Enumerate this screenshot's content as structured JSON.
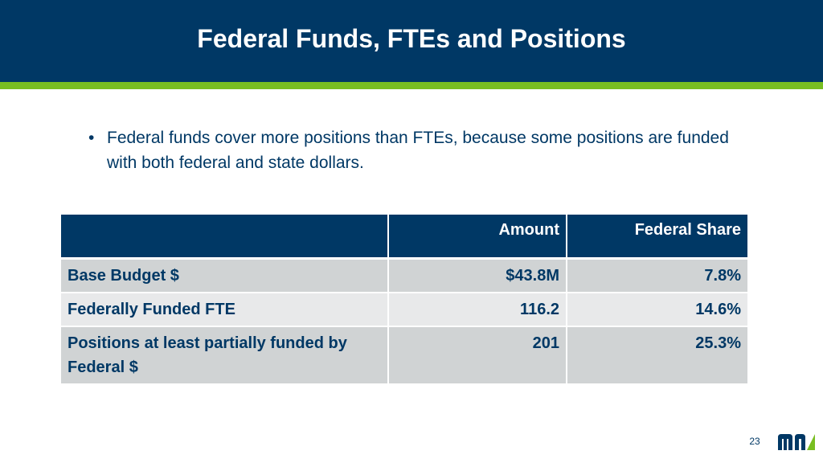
{
  "slide": {
    "title": "Federal Funds, FTEs and Positions",
    "bullet_marker": "•",
    "bullet_text": "Federal funds cover more positions than FTEs, because some positions are funded with both federal and state dollars.",
    "page_number": "23"
  },
  "table": {
    "headers": [
      "",
      "Amount",
      "Federal Share"
    ],
    "rows": [
      {
        "label": "Base Budget $",
        "amount": "$43.8M",
        "share": "7.8%"
      },
      {
        "label": "Federally Funded FTE",
        "amount": "116.2",
        "share": "14.6%"
      },
      {
        "label": "Positions at least partially funded by Federal $",
        "amount": "201",
        "share": "25.3%"
      }
    ]
  },
  "colors": {
    "navy": "#003865",
    "green": "#78be21",
    "row_dark": "#d0d3d4",
    "row_light": "#e8e9ea"
  },
  "logo": {
    "icon": "mn-state-logo-icon"
  }
}
